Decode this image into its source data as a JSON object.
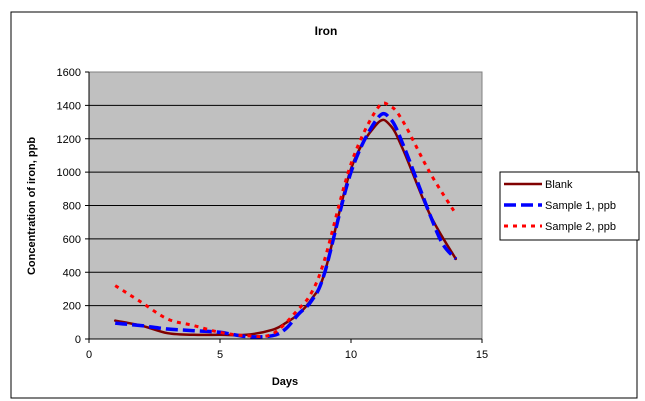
{
  "chart_data": {
    "type": "line",
    "title": "Iron",
    "xlabel": "Days",
    "ylabel": "Concentration of iron, ppb",
    "xlim": [
      0,
      15
    ],
    "ylim": [
      0,
      1600
    ],
    "xticks": [
      "0",
      "5",
      "10",
      "15"
    ],
    "yticks": [
      "0",
      "200",
      "400",
      "600",
      "800",
      "1000",
      "1200",
      "1400",
      "1600"
    ],
    "grid": "horizontal",
    "legend_position": "right",
    "plot_background": "#c0c0c0",
    "series": [
      {
        "name": "Blank",
        "color": "#800000",
        "style": "solid",
        "x": [
          1,
          2,
          3,
          4,
          5,
          6,
          7,
          7.5,
          8,
          8.5,
          9,
          10,
          11,
          11.5,
          12,
          13,
          14
        ],
        "y": [
          110,
          80,
          35,
          25,
          25,
          25,
          55,
          95,
          150,
          240,
          400,
          1020,
          1290,
          1280,
          1130,
          750,
          480
        ]
      },
      {
        "name": "Sample 1, ppb",
        "color": "#0000ff",
        "style": "dash",
        "x": [
          1,
          2,
          3,
          4,
          5,
          6,
          7,
          7.5,
          8,
          8.5,
          9,
          10,
          11,
          11.5,
          12,
          13,
          13.5,
          14
        ],
        "y": [
          95,
          80,
          60,
          50,
          40,
          15,
          20,
          60,
          150,
          230,
          400,
          1000,
          1320,
          1320,
          1160,
          750,
          570,
          480
        ]
      },
      {
        "name": "Sample 2, ppb",
        "color": "#ff0000",
        "style": "dot",
        "x": [
          1,
          2,
          3,
          4,
          5,
          6,
          7,
          8,
          8.5,
          9,
          10,
          11,
          11.5,
          12,
          13,
          14
        ],
        "y": [
          320,
          220,
          120,
          80,
          40,
          20,
          30,
          180,
          280,
          480,
          1050,
          1380,
          1395,
          1300,
          1000,
          750
        ]
      }
    ]
  }
}
